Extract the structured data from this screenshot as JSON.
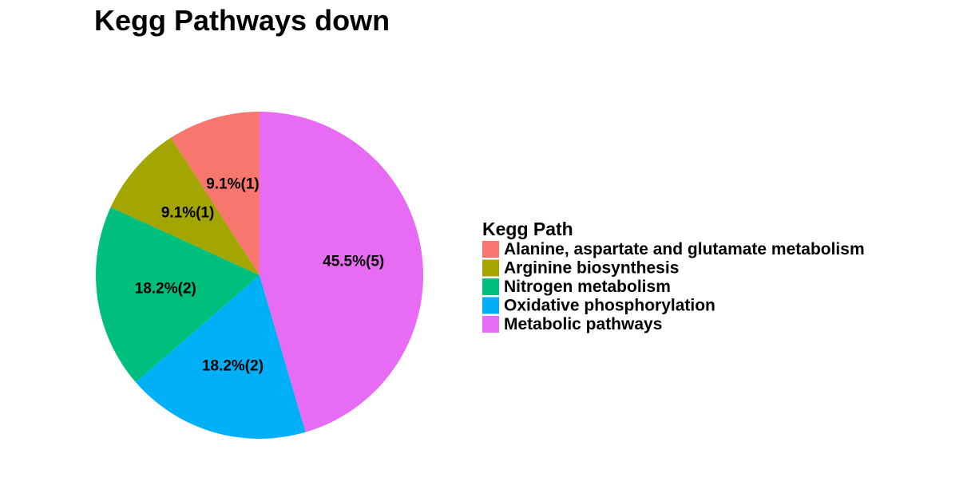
{
  "chart_data": {
    "type": "pie",
    "title": "Kegg Pathways down",
    "legend_title": "Kegg Path",
    "legend_position": "right",
    "slices": [
      {
        "category": "Alanine, aspartate and glutamate metabolism",
        "value": 1,
        "label": "9.1%(1)",
        "color": "#F8766D"
      },
      {
        "category": "Arginine biosynthesis",
        "value": 1,
        "label": "9.1%(1)",
        "color": "#A3A500"
      },
      {
        "category": "Nitrogen metabolism",
        "value": 2,
        "label": "18.2%(2)",
        "color": "#00BF7D"
      },
      {
        "category": "Oxidative phosphorylation",
        "value": 2,
        "label": "18.2%(2)",
        "color": "#00B0F6"
      },
      {
        "category": "Metabolic pathways",
        "value": 5,
        "label": "45.5%(5)",
        "color": "#E76BF3"
      }
    ],
    "direction": "counterclockwise",
    "start_angle": "top"
  }
}
